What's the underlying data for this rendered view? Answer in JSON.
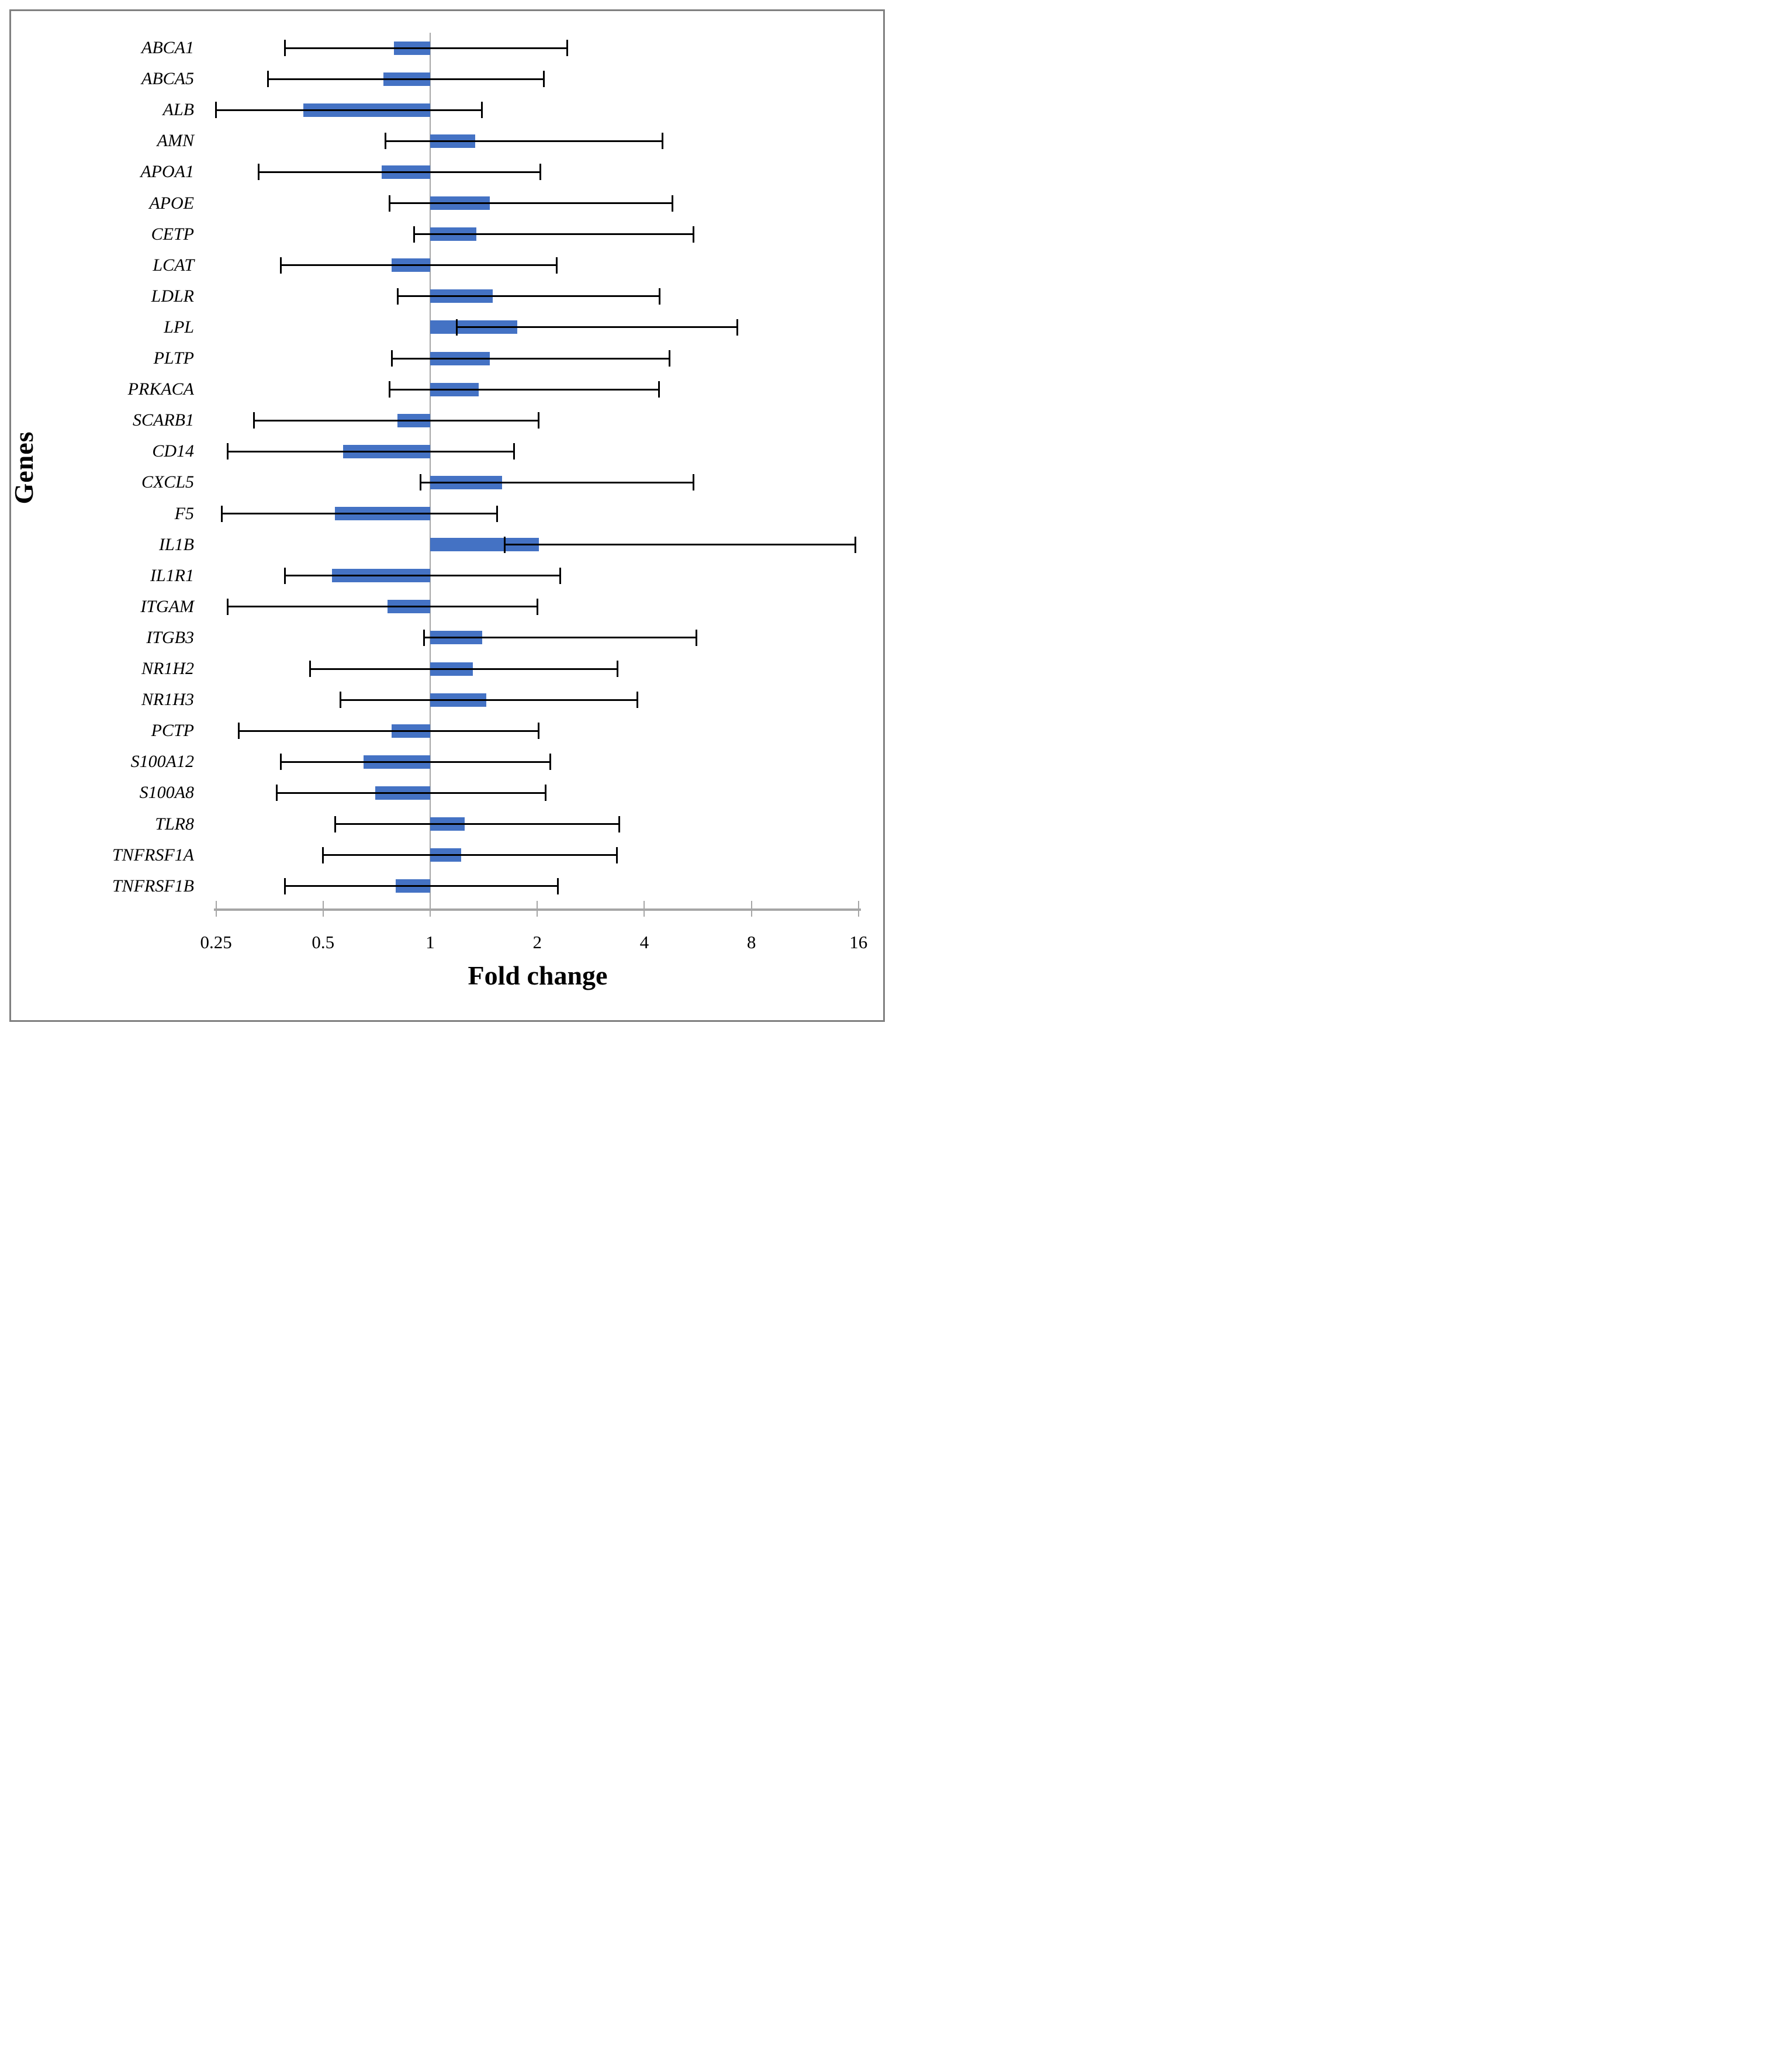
{
  "figure": {
    "x_axis_title": "Fold change",
    "y_axis_title": "Genes"
  },
  "chart_data": {
    "type": "bar",
    "orientation": "horizontal",
    "title": "",
    "xlabel": "Fold change",
    "ylabel": "Genes",
    "x_scale": "log2",
    "baseline": 1,
    "xlim": [
      0.25,
      16
    ],
    "grid": false,
    "legend": "none",
    "bar_color": "#4472C4",
    "error_bar_color": "#000000",
    "axis_color": "#A6A6A6",
    "x_tick_values": [
      0.25,
      0.5,
      1,
      2,
      4,
      8,
      16
    ],
    "x_tick_labels": [
      "0.25",
      "0.5",
      "1",
      "2",
      "4",
      "8",
      "16"
    ],
    "rows": [
      {
        "gene": "ABCA1",
        "fold_change": 0.79,
        "err_low": 0.39,
        "err_high": 2.43
      },
      {
        "gene": "ABCA5",
        "fold_change": 0.74,
        "err_low": 0.35,
        "err_high": 2.09
      },
      {
        "gene": "ALB",
        "fold_change": 0.44,
        "err_low": 0.25,
        "err_high": 1.4
      },
      {
        "gene": "AMN",
        "fold_change": 1.34,
        "err_low": 0.75,
        "err_high": 4.5
      },
      {
        "gene": "APOA1",
        "fold_change": 0.73,
        "err_low": 0.33,
        "err_high": 2.04
      },
      {
        "gene": "APOE",
        "fold_change": 1.47,
        "err_low": 0.77,
        "err_high": 4.8
      },
      {
        "gene": "CETP",
        "fold_change": 1.35,
        "err_low": 0.9,
        "err_high": 5.5
      },
      {
        "gene": "LCAT",
        "fold_change": 0.78,
        "err_low": 0.38,
        "err_high": 2.27
      },
      {
        "gene": "LDLR",
        "fold_change": 1.5,
        "err_low": 0.81,
        "err_high": 4.41
      },
      {
        "gene": "LPL",
        "fold_change": 1.76,
        "err_low": 1.19,
        "err_high": 7.3
      },
      {
        "gene": "PLTP",
        "fold_change": 1.47,
        "err_low": 0.78,
        "err_high": 4.7
      },
      {
        "gene": "PRKACA",
        "fold_change": 1.37,
        "err_low": 0.77,
        "err_high": 4.4
      },
      {
        "gene": "SCARB1",
        "fold_change": 0.81,
        "err_low": 0.32,
        "err_high": 2.02
      },
      {
        "gene": "CD14",
        "fold_change": 0.57,
        "err_low": 0.27,
        "err_high": 1.72
      },
      {
        "gene": "CXCL5",
        "fold_change": 1.59,
        "err_low": 0.94,
        "err_high": 5.5
      },
      {
        "gene": "F5",
        "fold_change": 0.54,
        "err_low": 0.26,
        "err_high": 1.54
      },
      {
        "gene": "IL1B",
        "fold_change": 2.02,
        "err_low": 1.62,
        "err_high": 15.7
      },
      {
        "gene": "IL1R1",
        "fold_change": 0.53,
        "err_low": 0.39,
        "err_high": 2.32
      },
      {
        "gene": "ITGAM",
        "fold_change": 0.76,
        "err_low": 0.27,
        "err_high": 2.0
      },
      {
        "gene": "ITGB3",
        "fold_change": 1.4,
        "err_low": 0.96,
        "err_high": 5.6
      },
      {
        "gene": "NR1H2",
        "fold_change": 1.32,
        "err_low": 0.46,
        "err_high": 3.36
      },
      {
        "gene": "NR1H3",
        "fold_change": 1.44,
        "err_low": 0.56,
        "err_high": 3.82
      },
      {
        "gene": "PCTP",
        "fold_change": 0.78,
        "err_low": 0.29,
        "err_high": 2.02
      },
      {
        "gene": "S100A12",
        "fold_change": 0.65,
        "err_low": 0.38,
        "err_high": 2.18
      },
      {
        "gene": "S100A8",
        "fold_change": 0.7,
        "err_low": 0.37,
        "err_high": 2.11
      },
      {
        "gene": "TLR8",
        "fold_change": 1.25,
        "err_low": 0.54,
        "err_high": 3.4
      },
      {
        "gene": "TNFRSF1A",
        "fold_change": 1.22,
        "err_low": 0.5,
        "err_high": 3.35
      },
      {
        "gene": "TNFRSF1B",
        "fold_change": 0.8,
        "err_low": 0.39,
        "err_high": 2.29
      }
    ]
  }
}
